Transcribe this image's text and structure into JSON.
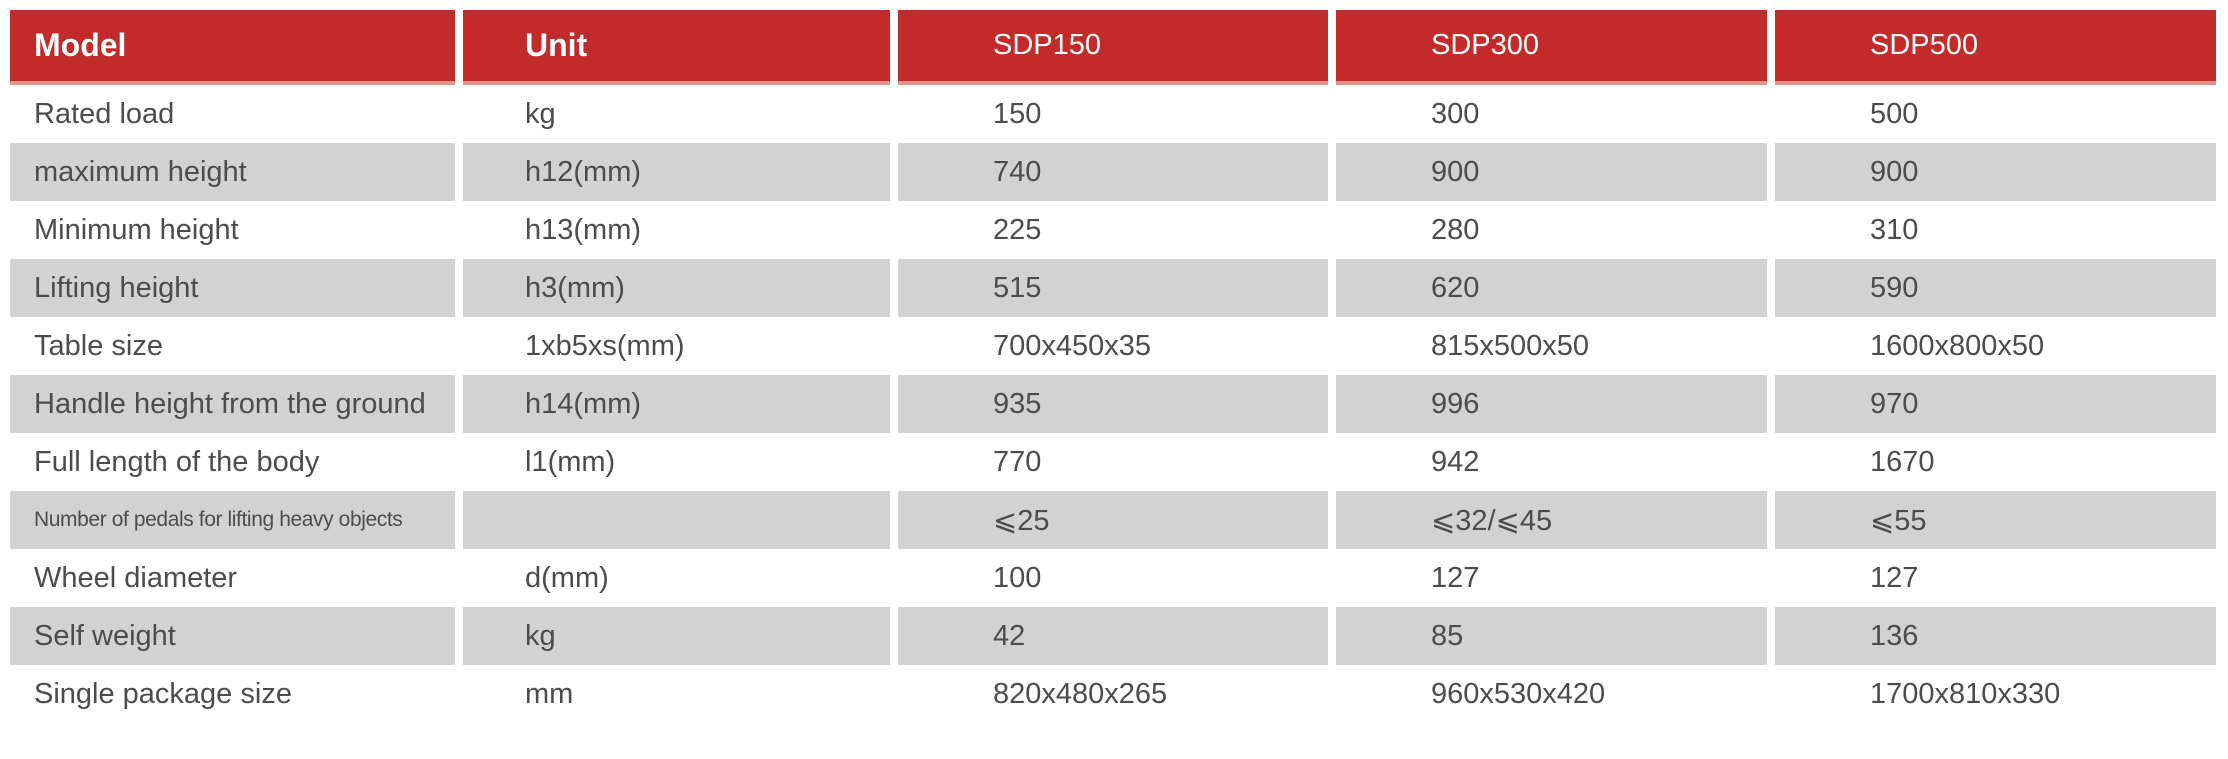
{
  "table": {
    "columns": [
      "Model",
      "Unit",
      "SDP150",
      "SDP300",
      "SDP500"
    ],
    "rows": [
      {
        "label": "Rated load",
        "unit": "kg",
        "sdp150": "150",
        "sdp300": "300",
        "sdp500": "500"
      },
      {
        "label": "maximum height",
        "unit": "h12(mm)",
        "sdp150": "740",
        "sdp300": "900",
        "sdp500": "900"
      },
      {
        "label": "Minimum height",
        "unit": "h13(mm)",
        "sdp150": "225",
        "sdp300": "280",
        "sdp500": "310"
      },
      {
        "label": "Lifting height",
        "unit": "h3(mm)",
        "sdp150": "515",
        "sdp300": "620",
        "sdp500": "590"
      },
      {
        "label": "Table size",
        "unit": "1xb5xs(mm)",
        "sdp150": "700x450x35",
        "sdp300": "815x500x50",
        "sdp500": "1600x800x50"
      },
      {
        "label": "Handle height from the ground",
        "unit": "h14(mm)",
        "sdp150": "935",
        "sdp300": "996",
        "sdp500": "970"
      },
      {
        "label": "Full length of the body",
        "unit": "l1(mm)",
        "sdp150": "770",
        "sdp300": "942",
        "sdp500": "1670"
      },
      {
        "label": "Number of pedals for lifting heavy objects",
        "unit": "",
        "sdp150": "⩽25",
        "sdp300": "⩽32/⩽45",
        "sdp500": "⩽55"
      },
      {
        "label": "Wheel diameter",
        "unit": "d(mm)",
        "sdp150": "100",
        "sdp300": "127",
        "sdp500": "127"
      },
      {
        "label": "Self weight",
        "unit": "kg",
        "sdp150": "42",
        "sdp300": "85",
        "sdp500": "136"
      },
      {
        "label": "Single package size",
        "unit": "mm",
        "sdp150": "820x480x265",
        "sdp300": "960x530x420",
        "sdp500": "1700x810x330"
      }
    ]
  },
  "colors": {
    "header_bg": "#C22B2A",
    "header_underline": "#E69087",
    "header_text": "#FFFFFF",
    "alt_row_bg": "#D2D2D3",
    "body_text": "#4C4C4E"
  }
}
